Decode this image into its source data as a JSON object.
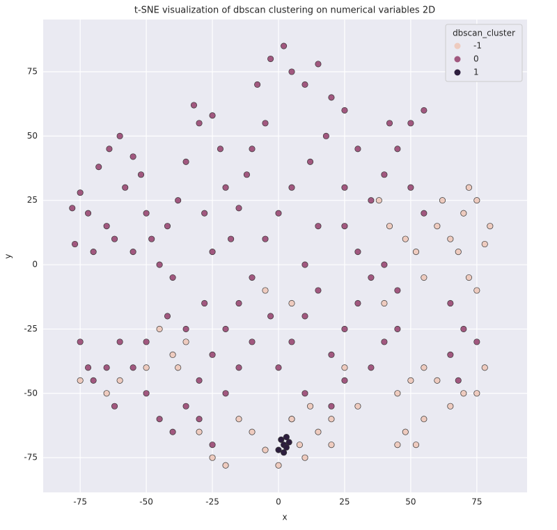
{
  "chart_data": {
    "type": "scatter",
    "title": "t-SNE visualization of dbscan clustering on numerical variables 2D",
    "x_label": "x",
    "y_label": "y",
    "xlim": [
      -89,
      94
    ],
    "ylim": [
      -88.5,
      95.3
    ],
    "xticks": [
      -75,
      -50,
      -25,
      0,
      25,
      50,
      75
    ],
    "yticks": [
      -75,
      -50,
      -25,
      0,
      25,
      50,
      75
    ],
    "grid": true,
    "legend_title": "dbscan_cluster",
    "legend_position": "upper-right",
    "series": [
      {
        "name": "0",
        "color": "#a1587f",
        "x": [
          -78,
          -75,
          -72,
          -77,
          -70,
          -65,
          -62,
          -68,
          -64,
          -60,
          -55,
          -58,
          -52,
          -50,
          -48,
          -55,
          -45,
          -40,
          -42,
          -38,
          -35,
          -30,
          -32,
          -25,
          -22,
          -20,
          -28,
          -25,
          -18,
          -15,
          -12,
          -10,
          -5,
          -8,
          -3,
          2,
          5,
          10,
          15,
          20,
          25,
          18,
          12,
          5,
          0,
          -5,
          -10,
          -15,
          -20,
          -25,
          -30,
          -35,
          -40,
          -45,
          -50,
          -55,
          -60,
          -65,
          -70,
          -75,
          -72,
          -62,
          -50,
          -42,
          -35,
          -28,
          -30,
          -25,
          -20,
          -15,
          -10,
          -3,
          0,
          5,
          10,
          15,
          20,
          25,
          30,
          35,
          40,
          45,
          30,
          25,
          35,
          40,
          45,
          50,
          55,
          42,
          30,
          25,
          15,
          10,
          50,
          55,
          45,
          40,
          35,
          25,
          20,
          10,
          5,
          65,
          70,
          75,
          65,
          68
        ],
        "y": [
          22,
          28,
          20,
          8,
          5,
          15,
          10,
          38,
          45,
          50,
          42,
          30,
          35,
          20,
          10,
          5,
          0,
          -5,
          15,
          25,
          40,
          55,
          62,
          58,
          45,
          30,
          20,
          5,
          10,
          22,
          35,
          45,
          55,
          70,
          80,
          85,
          75,
          70,
          78,
          65,
          60,
          50,
          40,
          30,
          20,
          10,
          -5,
          -15,
          -25,
          -35,
          -45,
          -55,
          -65,
          -60,
          -50,
          -40,
          -30,
          -40,
          -45,
          -30,
          -40,
          -55,
          -30,
          -20,
          -25,
          -15,
          -60,
          -70,
          -50,
          -40,
          -30,
          -20,
          -40,
          -30,
          -20,
          -10,
          -35,
          -25,
          -15,
          -5,
          0,
          -10,
          5,
          15,
          25,
          35,
          45,
          55,
          60,
          55,
          45,
          30,
          15,
          0,
          30,
          20,
          -25,
          -30,
          -40,
          -45,
          -55,
          -50,
          -60,
          -15,
          -25,
          -30,
          -35,
          -45
        ]
      },
      {
        "name": "-1",
        "color": "#eecbbf",
        "x": [
          60,
          65,
          70,
          75,
          80,
          72,
          68,
          62,
          78,
          72,
          75,
          60,
          65,
          70,
          78,
          75,
          55,
          50,
          45,
          48,
          52,
          55,
          45,
          5,
          8,
          10,
          15,
          0,
          -5,
          12,
          20,
          -10,
          -60,
          -50,
          -40,
          -35,
          -75,
          -65,
          -45,
          -38,
          -25,
          -30,
          38,
          42,
          48,
          52,
          55,
          40,
          25,
          30,
          20,
          -5,
          5,
          -15,
          -20
        ],
        "y": [
          15,
          10,
          20,
          25,
          15,
          30,
          5,
          25,
          8,
          -5,
          -10,
          -45,
          -55,
          -50,
          -40,
          -50,
          -40,
          -45,
          -50,
          -65,
          -70,
          -60,
          -70,
          -60,
          -70,
          -75,
          -65,
          -78,
          -72,
          -55,
          -60,
          -65,
          -45,
          -40,
          -35,
          -30,
          -45,
          -50,
          -25,
          -40,
          -75,
          -65,
          25,
          15,
          10,
          5,
          -5,
          -15,
          -40,
          -55,
          -70,
          -10,
          -15,
          -60,
          -78
        ]
      },
      {
        "name": "1",
        "color": "#2d1e3e",
        "x": [
          1,
          2,
          3,
          0,
          4,
          2,
          3
        ],
        "y": [
          -68,
          -70,
          -67,
          -72,
          -69,
          -73,
          -71
        ]
      }
    ]
  }
}
